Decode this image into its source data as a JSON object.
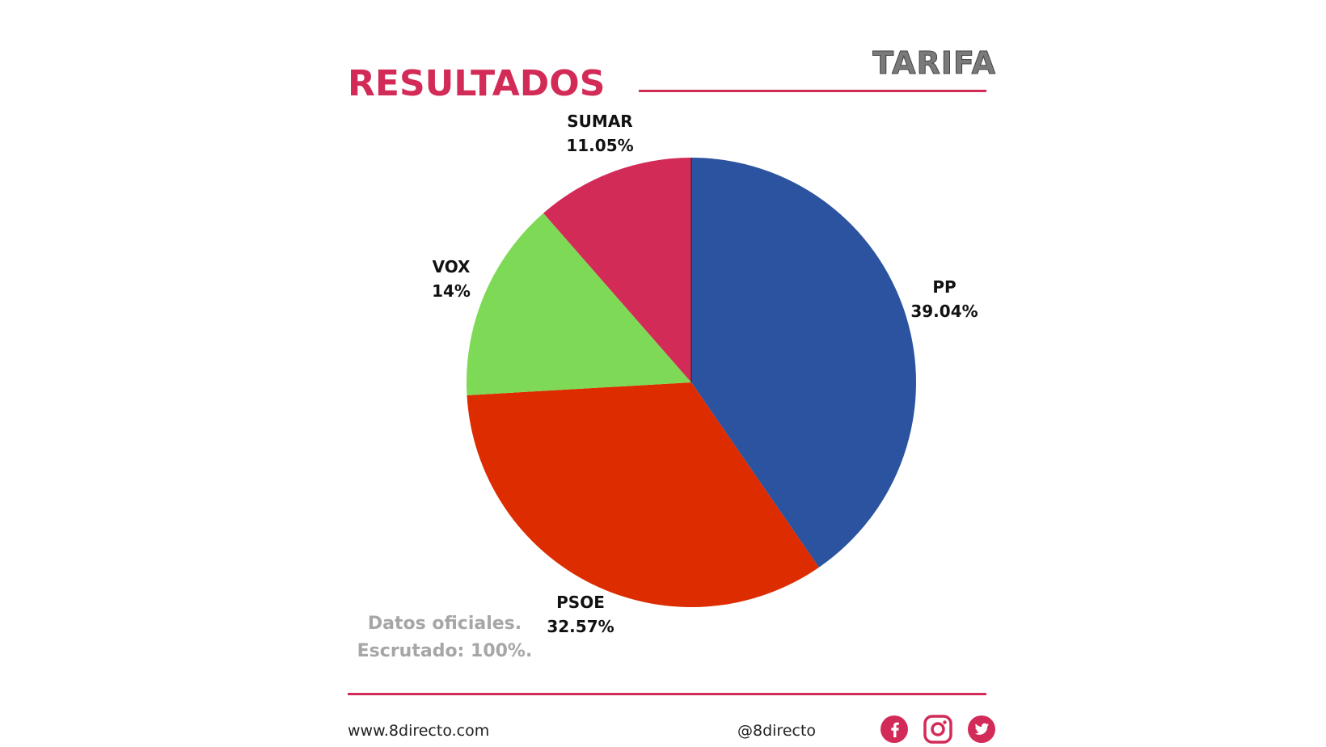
{
  "header": {
    "title": "RESULTADOS",
    "location": "TARIFA"
  },
  "note": {
    "line1": "Datos oficiales.",
    "line2": "Escrutado: 100%."
  },
  "footer": {
    "website": "www.8directo.com",
    "handle": "@8directo",
    "icons": [
      "facebook-icon",
      "instagram-icon",
      "twitter-icon"
    ],
    "icon_color": "#d22b57"
  },
  "chart_data": {
    "type": "pie",
    "title": "RESULTADOS",
    "slices": [
      {
        "name": "PP",
        "value": 39.04,
        "label": "39.04%",
        "color": "#2b539f"
      },
      {
        "name": "PSOE",
        "value": 32.57,
        "label": "32.57%",
        "color": "#dd2c00"
      },
      {
        "name": "VOX",
        "value": 14,
        "label": "14%",
        "color": "#7ed957"
      },
      {
        "name": "SUMAR",
        "value": 11.05,
        "label": "11.05%",
        "color": "#d22b57"
      }
    ],
    "start": "12 o'clock",
    "direction": "clockwise",
    "labels": "outside"
  }
}
